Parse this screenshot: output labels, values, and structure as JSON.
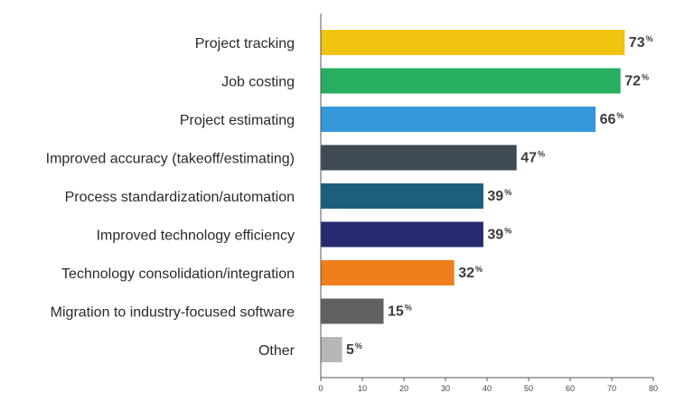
{
  "chart_data": {
    "type": "bar",
    "orientation": "horizontal",
    "categories": [
      "Project tracking",
      "Job costing",
      "Project estimating",
      "Improved accuracy (takeoff/estimating)",
      "Process standardization/automation",
      "Improved technology efficiency",
      "Technology consolidation/integration",
      "Migration to industry-focused software",
      "Other"
    ],
    "values": [
      73,
      72,
      66,
      47,
      39,
      39,
      32,
      15,
      5
    ],
    "value_suffix": "%",
    "colors": [
      "#F1C40F",
      "#27AE60",
      "#3498DB",
      "#3F4A54",
      "#1B5E7E",
      "#272A6E",
      "#EE7F1A",
      "#616161",
      "#B7B7B7"
    ],
    "xlim": [
      0,
      80
    ],
    "xticks": [
      "0",
      "10",
      "20",
      "30",
      "40",
      "50",
      "60",
      "70",
      "80"
    ],
    "grid": false,
    "title": "",
    "xlabel": "",
    "ylabel": ""
  }
}
